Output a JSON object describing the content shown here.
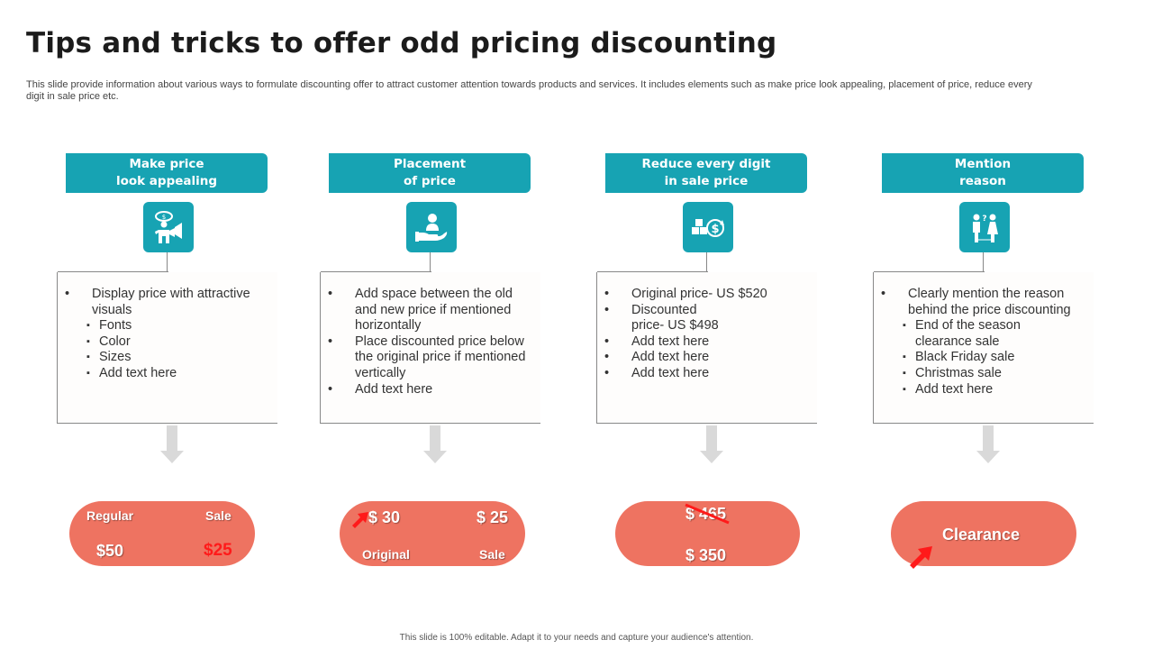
{
  "title": "Tips and tricks to offer odd pricing discounting",
  "subtitle": "This slide provide information about various ways to formulate discounting offer to attract customer attention towards products and services. It includes elements such as make price look appealing, placement of price, reduce every digit in sale price etc.",
  "footer": "This slide is 100% editable. Adapt it to your needs and capture your audience's attention.",
  "colors": {
    "teal": "#17a3b3",
    "salmon": "#ee7361",
    "red_accent": "#ff1a1a",
    "arrow_gray": "#d9d9d9"
  },
  "columns": [
    {
      "header": "Make price\nlook appealing",
      "icon": "presenter-megaphone-icon",
      "items": [
        {
          "type": "bullet",
          "text": "Display price with attractive visuals"
        },
        {
          "type": "sub",
          "text": "Fonts"
        },
        {
          "type": "sub",
          "text": "Color"
        },
        {
          "type": "sub",
          "text": "Sizes"
        },
        {
          "type": "sub",
          "text": "Add text here"
        }
      ],
      "pill": {
        "regular_label": "Regular",
        "sale_label": "Sale",
        "regular_price": "$50",
        "sale_price": "$25"
      }
    },
    {
      "header": "Placement\nof price",
      "icon": "hand-holding-person-icon",
      "items": [
        {
          "type": "bullet",
          "text": "Add space between the old and new price if mentioned horizontally"
        },
        {
          "type": "bullet",
          "text": "Place discounted price below the original price if mentioned vertically"
        },
        {
          "type": "bullet",
          "text": "Add text here"
        }
      ],
      "pill": {
        "original_price": "$ 30",
        "sale_price": "$ 25",
        "original_label": "Original",
        "sale_label": "Sale"
      }
    },
    {
      "header": "Reduce every digit\nin sale price",
      "icon": "boxes-dollar-icon",
      "items": [
        {
          "type": "bullet",
          "text": "Original price- US $520"
        },
        {
          "type": "bullet",
          "text": "Discounted price- US $498"
        },
        {
          "type": "bullet",
          "text": "Add text here"
        },
        {
          "type": "bullet",
          "text": "Add text here"
        },
        {
          "type": "bullet",
          "text": "Add text here"
        }
      ],
      "pill": {
        "old_price": "$ 465",
        "new_price": "$ 350"
      }
    },
    {
      "header": "Mention\nreason",
      "icon": "couple-question-icon",
      "items": [
        {
          "type": "bullet",
          "text": "Clearly mention the reason behind the price discounting"
        },
        {
          "type": "sub",
          "text": "End of the season clearance sale"
        },
        {
          "type": "sub",
          "text": "Black Friday sale"
        },
        {
          "type": "sub",
          "text": "Christmas sale"
        },
        {
          "type": "sub",
          "text": "Add text here"
        }
      ],
      "pill": {
        "label": "Clearance"
      }
    }
  ]
}
